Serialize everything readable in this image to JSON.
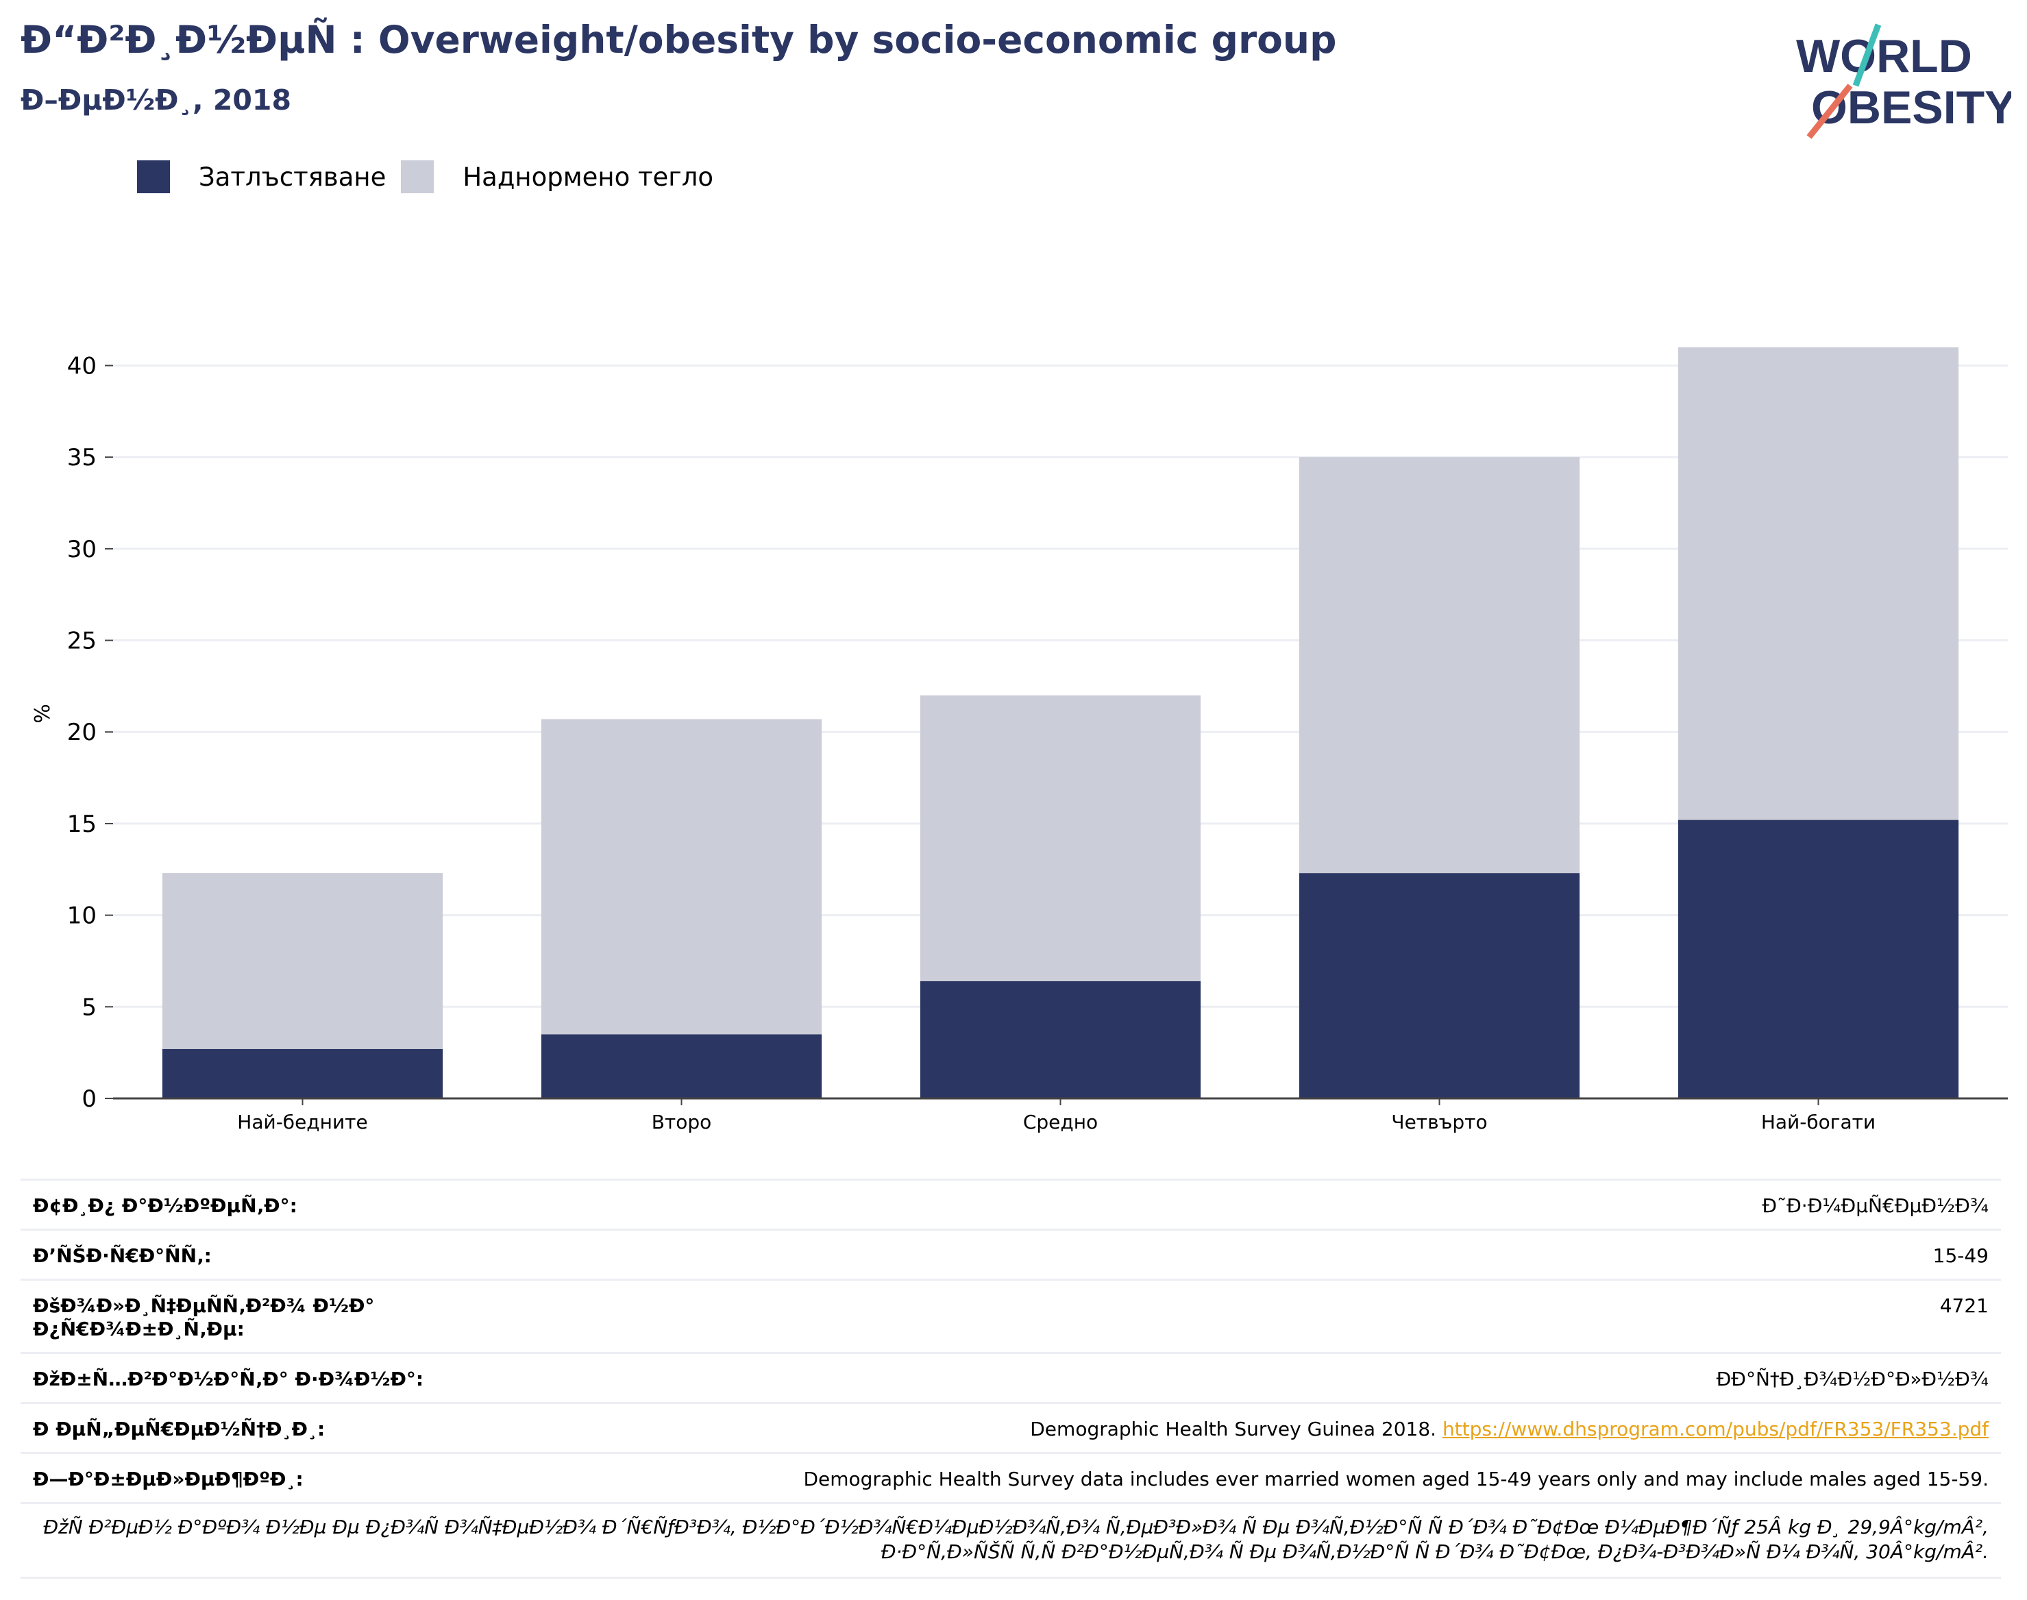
{
  "header": {
    "title": "Ð“Ð²Ð¸Ð½ÐµÑ : Overweight/obesity by socio-economic group",
    "subtitle": "Ð–ÐµÐ½Ð¸, 2018"
  },
  "logo": {
    "line1": "WORLD",
    "line2": "OBESITY"
  },
  "legend": [
    {
      "label": "Затлъстяване",
      "color": "#2b3663"
    },
    {
      "label": "Наднормено тегло",
      "color": "#cbcdd8"
    }
  ],
  "chart_data": {
    "type": "bar",
    "stacked": true,
    "categories": [
      "Най-бедните",
      "Второ",
      "Средно",
      "Четвърто",
      "Най-богати"
    ],
    "series": [
      {
        "name": "Затлъстяване",
        "color": "#2b3663",
        "values": [
          2.7,
          3.5,
          6.4,
          12.3,
          15.2
        ]
      },
      {
        "name": "Наднормено тегло",
        "color": "#cbcdd8",
        "values": [
          9.6,
          17.2,
          15.6,
          22.7,
          25.8
        ]
      }
    ],
    "ylabel": "%",
    "xlabel": "",
    "ylim": [
      0,
      42
    ],
    "yticks": [
      0,
      5,
      10,
      15,
      20,
      25,
      30,
      35,
      40
    ],
    "grid": true
  },
  "info": {
    "rows": [
      {
        "key": "Ð¢Ð¸Ð¿ Ð°Ð½ÐºÐµÑ‚Ð°:",
        "value": "Ð˜Ð·Ð¼ÐµÑ€ÐµÐ½Ð¾"
      },
      {
        "key": "Ð’ÑŠÐ·Ñ€Ð°ÑÑ‚:",
        "value": "15-49"
      },
      {
        "key": "ÐšÐ¾Ð»Ð¸Ñ‡ÐµÑÑ‚Ð²Ð¾ Ð½Ð° Ð¿Ñ€Ð¾Ð±Ð¸Ñ‚Ðµ:",
        "value": "4721"
      },
      {
        "key": "ÐžÐ±Ñ…Ð²Ð°Ð½Ð°Ñ‚Ð° Ð·Ð¾Ð½Ð°:",
        "value": "ÐÐ°Ñ†Ð¸Ð¾Ð½Ð°Ð»Ð½Ð¾"
      },
      {
        "key": "Ð ÐµÑ„ÐµÑ€ÐµÐ½Ñ†Ð¸Ð¸:",
        "value": "Demographic Health Survey Guinea 2018. ",
        "link": "https://www.dhsprogram.com/pubs/pdf/FR353/FR353.pdf"
      },
      {
        "key": "Ð—Ð°Ð±ÐµÐ»ÐµÐ¶ÐºÐ¸:",
        "value": "Demographic Health Survey data includes ever married women aged 15-49 years only and may include males aged 15-59."
      }
    ],
    "note": "ÐžÑ Ð²ÐµÐ½ Ð°ÐºÐ¾ Ð½Ðµ Ðµ Ð¿Ð¾Ñ Ð¾Ñ‡ÐµÐ½Ð¾ Ð´Ñ€ÑƒÐ³Ð¾, Ð½Ð°Ð´Ð½Ð¾Ñ€Ð¼ÐµÐ½Ð¾Ñ‚Ð¾ Ñ‚ÐµÐ³Ð»Ð¾ Ñ Ðµ Ð¾Ñ‚Ð½Ð°Ñ Ñ  Ð´Ð¾ Ð˜Ð¢Ðœ Ð¼ÐµÐ¶Ð´Ñƒ 25Â kg Ð¸ 29,9Â°kg/mÂ², Ð·Ð°Ñ‚Ð»ÑŠÑ Ñ‚Ñ Ð²Ð°Ð½ÐµÑ‚Ð¾ Ñ Ðµ Ð¾Ñ‚Ð½Ð°Ñ Ñ  Ð´Ð¾ Ð˜Ð¢Ðœ, Ð¿Ð¾-Ð³Ð¾Ð»Ñ Ð¼ Ð¾Ñ‚ 30Â°kg/mÂ²."
  }
}
